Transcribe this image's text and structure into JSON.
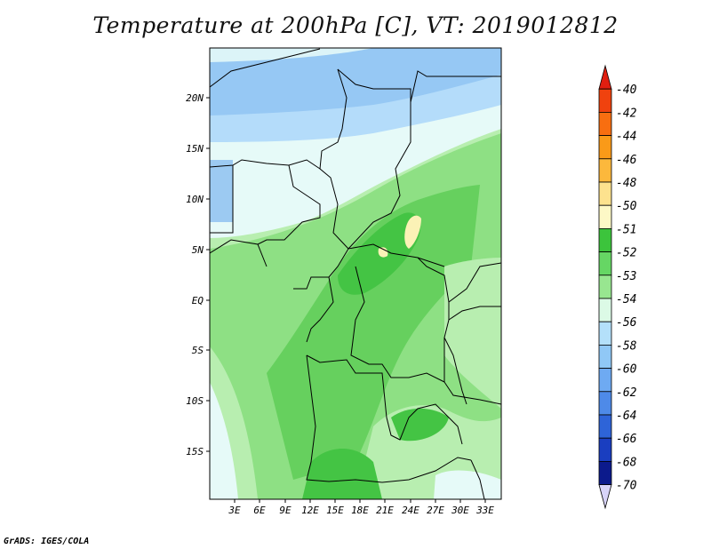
{
  "title": "Temperature at 200hPa [C], VT: 2019012812",
  "credit": "GrADS: IGES/COLA",
  "map": {
    "lat_labels": [
      "20N",
      "15N",
      "10N",
      "5N",
      "EQ",
      "5S",
      "10S",
      "15S"
    ],
    "lon_labels": [
      "3E",
      "6E",
      "9E",
      "12E",
      "15E",
      "18E",
      "21E",
      "24E",
      "27E",
      "30E",
      "33E"
    ]
  },
  "colorbar": {
    "labels": [
      "-40",
      "-42",
      "-44",
      "-46",
      "-48",
      "-50",
      "-51",
      "-52",
      "-53",
      "-54",
      "-56",
      "-58",
      "-60",
      "-62",
      "-64",
      "-66",
      "-68",
      "-70"
    ],
    "colors": [
      "#e01e10",
      "#f0420e",
      "#f86e10",
      "#fa9a18",
      "#fcb83c",
      "#fde28e",
      "#fdf8c6",
      "#3cc43c",
      "#66d664",
      "#98e690",
      "#dcfae6",
      "#b4e0fa",
      "#90c8f6",
      "#6eaaf2",
      "#4e8ae8",
      "#2e64d8",
      "#1a3ec0",
      "#0c1a8c",
      "#d8d4f8"
    ]
  },
  "legend_colors": {
    "very_light_cyan": "#e6faf8",
    "light_blue": "#b4dcfa",
    "medium_blue": "#96c8f4",
    "pale_green": "#b8eeb0",
    "light_green": "#8ee084",
    "green": "#66d05e",
    "dark_green": "#44c444",
    "cream": "#fbf2b6"
  }
}
